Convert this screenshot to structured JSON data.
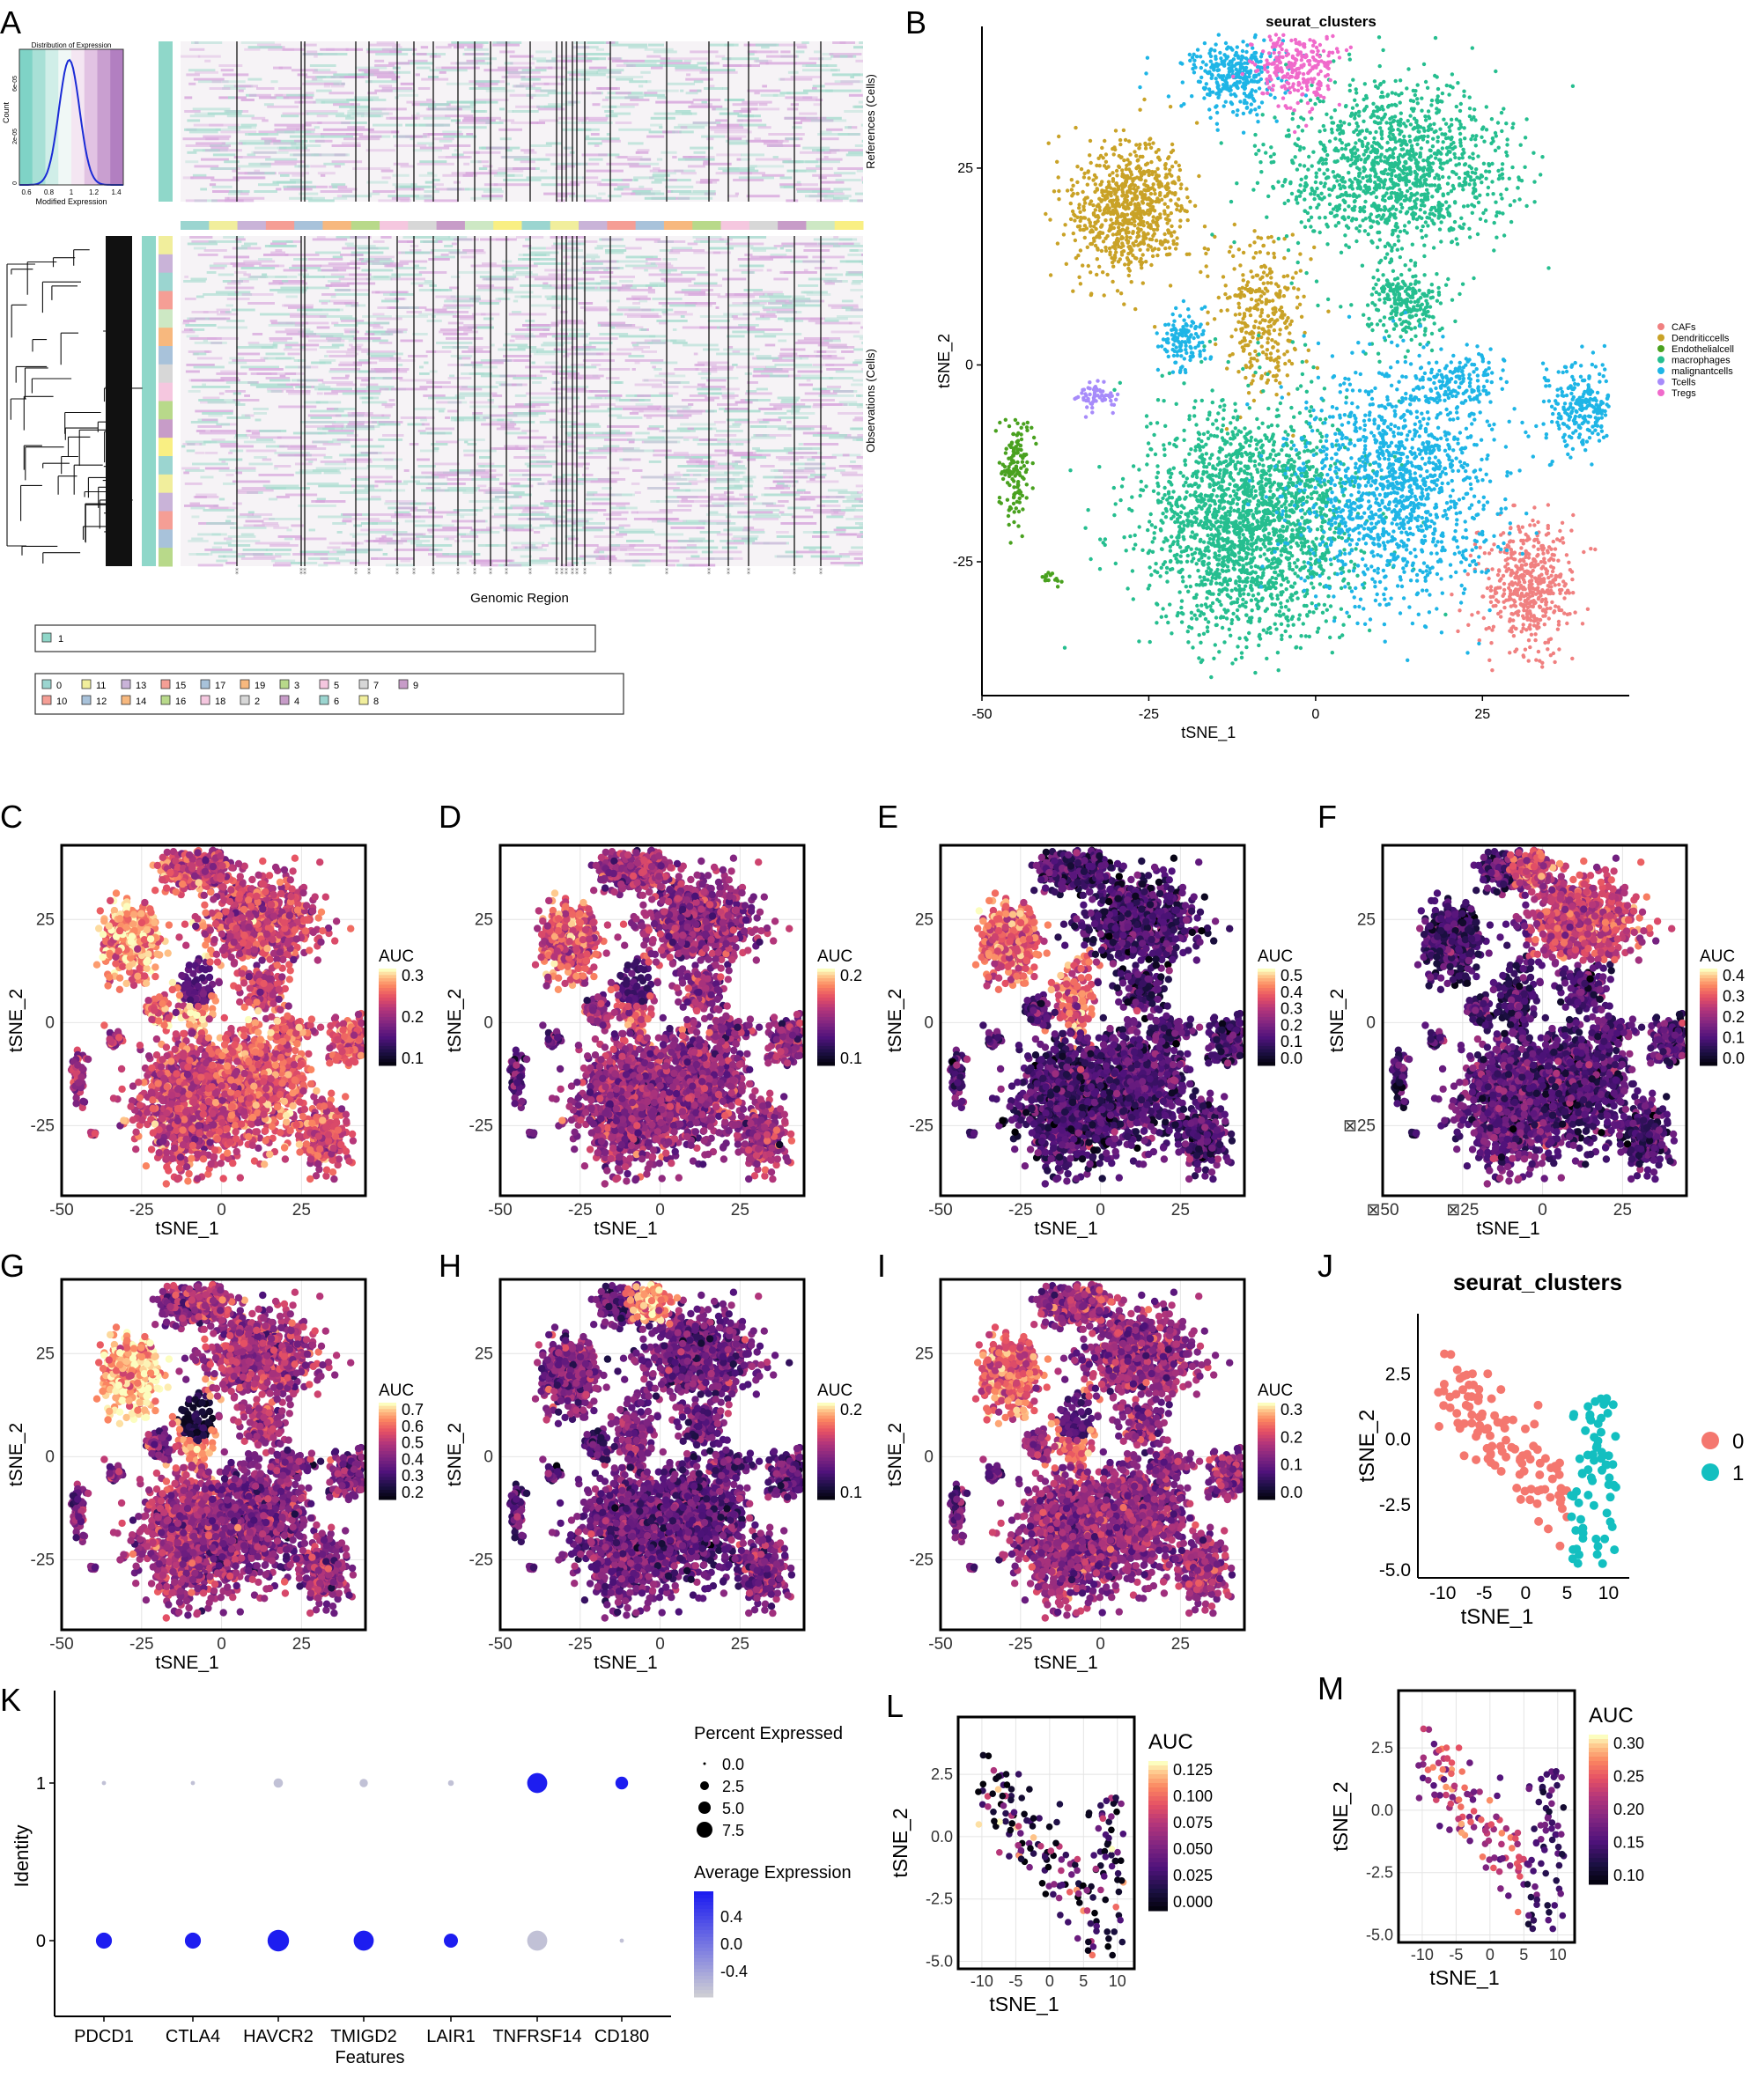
{
  "colors": {
    "CAFs": "#F08080",
    "Dendriticcells": "#C9A227",
    "Endothelialcell": "#49A11F",
    "macrophages": "#25BE8F",
    "malignantcells": "#1EB5E6",
    "Tcells": "#A78BFA",
    "Tregs": "#F06ACB",
    "cluster0": "#F4776F",
    "cluster1": "#13BFC0",
    "dot_high": "#1D1DF0",
    "dot_low": "#D3D3D3"
  },
  "panelA": {
    "letter": "A",
    "inset_title": "Distribution of Expression",
    "inset_ylabel": "Count",
    "inset_xlabel": "Modified Expression",
    "inset_xticks": [
      "0.6",
      "0.8",
      "1",
      "1.2",
      "1.4"
    ],
    "inset_yticks": [
      "0",
      "2e-05",
      "6e-05"
    ],
    "ref_label": "References (Cells)",
    "obs_label": "Observations (Cells)",
    "xlabel": "Genomic Region",
    "legend1": [
      "1"
    ],
    "legend2_row1": [
      "0",
      "11",
      "13",
      "15",
      "17",
      "19",
      "3",
      "5",
      "7",
      "9"
    ],
    "legend2_row2": [
      "10",
      "12",
      "14",
      "16",
      "18",
      "2",
      "4",
      "6",
      "8"
    ]
  },
  "panelB": {
    "letter": "B",
    "title": "seurat_clusters",
    "xlabel": "tSNE_1",
    "ylabel": "tSNE_2",
    "xticks": [
      "-50",
      "-25",
      "0",
      "25"
    ],
    "yticks": [
      "25",
      "0",
      "-25"
    ],
    "legend": [
      "CAFs",
      "Dendriticcells",
      "Endothelialcell",
      "macrophages",
      "malignantcells",
      "Tcells",
      "Tregs"
    ]
  },
  "auc_panels": [
    {
      "letter": "C",
      "legend_title": "AUC",
      "legend_ticks": [
        "0.3",
        "0.2",
        "0.1"
      ],
      "xlabel": "tSNE_1",
      "ylabel": "tSNE_2",
      "xticks": [
        "-50",
        "-25",
        "0",
        "25"
      ],
      "yticks": [
        "25",
        "0",
        "-25"
      ],
      "pattern": "c"
    },
    {
      "letter": "D",
      "legend_title": "AUC",
      "legend_ticks": [
        "0.2",
        "0.1"
      ],
      "xlabel": "tSNE_1",
      "ylabel": "tSNE_2",
      "xticks": [
        "-50",
        "-25",
        "0",
        "25"
      ],
      "yticks": [
        "25",
        "0",
        "-25"
      ],
      "pattern": "d"
    },
    {
      "letter": "E",
      "legend_title": "AUC",
      "legend_ticks": [
        "0.5",
        "0.4",
        "0.3",
        "0.2",
        "0.1",
        "0.0"
      ],
      "xlabel": "tSNE_1",
      "ylabel": "tSNE_2",
      "xticks": [
        "-50",
        "-25",
        "0",
        "25"
      ],
      "yticks": [
        "25",
        "0",
        "-25"
      ],
      "pattern": "e"
    },
    {
      "letter": "F",
      "legend_title": "AUC",
      "legend_ticks": [
        "0.4",
        "0.3",
        "0.2",
        "0.1",
        "0.0"
      ],
      "xlabel": "tSNE_1",
      "ylabel": "tSNE_2",
      "xticks": [
        "⊠50",
        "⊠25",
        "0",
        "25"
      ],
      "yticks": [
        "25",
        "0",
        "⊠25"
      ],
      "pattern": "f"
    },
    {
      "letter": "G",
      "legend_title": "AUC",
      "legend_ticks": [
        "0.7",
        "0.6",
        "0.5",
        "0.4",
        "0.3",
        "0.2"
      ],
      "xlabel": "tSNE_1",
      "ylabel": "tSNE_2",
      "xticks": [
        "-50",
        "-25",
        "0",
        "25"
      ],
      "yticks": [
        "25",
        "0",
        "-25"
      ],
      "pattern": "g"
    },
    {
      "letter": "H",
      "legend_title": "AUC",
      "legend_ticks": [
        "0.2",
        "0.1"
      ],
      "xlabel": "tSNE_1",
      "ylabel": "tSNE_2",
      "xticks": [
        "-50",
        "-25",
        "0",
        "25"
      ],
      "yticks": [
        "25",
        "0",
        "-25"
      ],
      "pattern": "h"
    },
    {
      "letter": "I",
      "legend_title": "AUC",
      "legend_ticks": [
        "0.3",
        "0.2",
        "0.1",
        "0.0"
      ],
      "xlabel": "tSNE_1",
      "ylabel": "tSNE_2",
      "xticks": [
        "-50",
        "-25",
        "0",
        "25"
      ],
      "yticks": [
        "25",
        "0",
        "-25"
      ],
      "pattern": "i"
    }
  ],
  "panelJ": {
    "letter": "J",
    "title": "seurat_clusters",
    "xlabel": "tSNE_1",
    "ylabel": "tSNE_2",
    "xticks": [
      "-10",
      "-5",
      "0",
      "5",
      "10"
    ],
    "yticks": [
      "2.5",
      "0.0",
      "-2.5",
      "-5.0"
    ],
    "legend": [
      "0",
      "1"
    ]
  },
  "panelK": {
    "letter": "K",
    "ylabel": "Identity",
    "xlabel": "Features",
    "size_legend_title": "Percent Expressed",
    "size_legend": [
      "0.0",
      "2.5",
      "5.0",
      "7.5"
    ],
    "color_legend_title": "Average Expression",
    "color_legend": [
      "0.4",
      "0.0",
      "-0.4"
    ]
  },
  "panelL": {
    "letter": "L",
    "legend_title": "AUC",
    "legend_ticks": [
      "0.125",
      "0.100",
      "0.075",
      "0.050",
      "0.025",
      "0.000"
    ],
    "xlabel": "tSNE_1",
    "ylabel": "tSNE_2",
    "xticks": [
      "-10",
      "-5",
      "0",
      "5",
      "10"
    ],
    "yticks": [
      "2.5",
      "0.0",
      "-2.5",
      "-5.0"
    ]
  },
  "panelM": {
    "letter": "M",
    "legend_title": "AUC",
    "legend_ticks": [
      "0.30",
      "0.25",
      "0.20",
      "0.15",
      "0.10"
    ],
    "xlabel": "tSNE_1",
    "ylabel": "tSNE_2",
    "xticks": [
      "-10",
      "-5",
      "0",
      "5",
      "10"
    ],
    "yticks": [
      "2.5",
      "0.0",
      "-2.5",
      "-5.0"
    ]
  },
  "chart_data": [
    {
      "type": "scatter",
      "panel": "B",
      "title": "seurat_clusters",
      "xlabel": "tSNE_1",
      "ylabel": "tSNE_2",
      "xlim": [
        -50,
        45
      ],
      "ylim": [
        -40,
        42
      ],
      "series": [
        {
          "name": "CAFs",
          "center": [
            32,
            -28
          ]
        },
        {
          "name": "Dendriticcells",
          "center": [
            -28,
            20
          ]
        },
        {
          "name": "Endothelialcell",
          "center": [
            -45,
            -13
          ]
        },
        {
          "name": "macrophages",
          "center": [
            -10,
            -17
          ]
        },
        {
          "name": "malignantcells",
          "center": [
            13,
            -14
          ]
        },
        {
          "name": "Tcells",
          "center": [
            -33,
            -3
          ]
        },
        {
          "name": "Tregs",
          "center": [
            -3,
            38
          ]
        }
      ]
    },
    {
      "type": "dot",
      "panel": "K",
      "xlabel": "Features",
      "ylabel": "Identity",
      "categories": [
        "PDCD1",
        "CTLA4",
        "HAVCR2",
        "TMIGD2",
        "LAIR1",
        "TNFRSF14",
        "CD180"
      ],
      "identities": [
        "0",
        "1"
      ],
      "series": [
        {
          "name": "1",
          "percent": [
            0.3,
            0.3,
            1.5,
            1.2,
            0.6,
            7.0,
            2.8
          ],
          "avg_expression": [
            -0.4,
            -0.4,
            -0.4,
            -0.4,
            -0.4,
            0.5,
            0.5
          ]
        },
        {
          "name": "0",
          "percent": [
            4.5,
            4.5,
            8.0,
            7.0,
            3.5,
            7.0,
            0.3
          ],
          "avg_expression": [
            0.5,
            0.5,
            0.5,
            0.5,
            0.5,
            -0.4,
            -0.4
          ]
        }
      ]
    },
    {
      "type": "scatter",
      "panel": "J",
      "title": "seurat_clusters",
      "xlabel": "tSNE_1",
      "ylabel": "tSNE_2",
      "xlim": [
        -13,
        12.5
      ],
      "ylim": [
        -5.3,
        4.8
      ],
      "series": [
        {
          "name": "0",
          "center": [
            -4,
            0.8
          ]
        },
        {
          "name": "1",
          "center": [
            8.3,
            -1.8
          ]
        }
      ]
    }
  ]
}
